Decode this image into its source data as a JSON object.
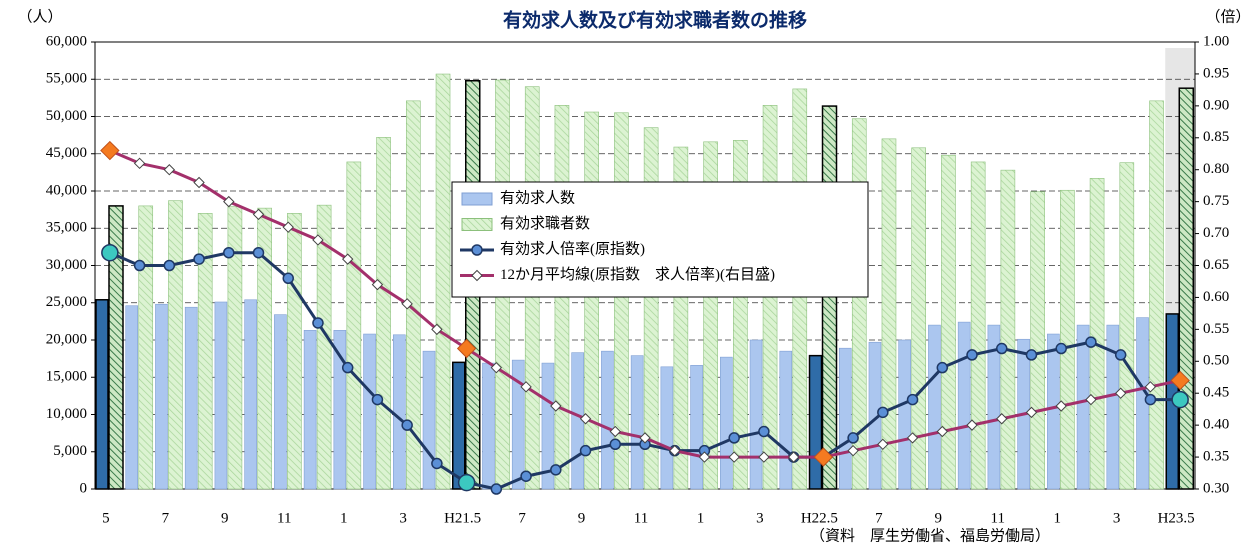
{
  "chart_data": {
    "type": "bar",
    "title": "有効求人数及び有効求職者数の推移",
    "y_unit": "（人）",
    "y2_unit": "（倍）",
    "source": "（資料　厚生労働省、福島労働局）",
    "categories": [
      "5",
      null,
      "7",
      null,
      "9",
      null,
      "11",
      null,
      "1",
      null,
      "3",
      null,
      "H21.5",
      null,
      "7",
      null,
      "9",
      null,
      "11",
      null,
      "1",
      null,
      "3",
      null,
      "H22.5",
      null,
      "7",
      null,
      "9",
      null,
      "11",
      null,
      "1",
      null,
      "3",
      null,
      "H23.5"
    ],
    "ylim": [
      0,
      60000
    ],
    "yticks": [
      0,
      {
        "value": 5000,
        "label": "5,000"
      },
      {
        "value": 10000,
        "label": "10,000"
      },
      {
        "value": 15000,
        "label": "15,000"
      },
      {
        "value": 20000,
        "label": "20,000"
      },
      {
        "value": 25000,
        "label": "25,000"
      },
      {
        "value": 30000,
        "label": "30,000"
      },
      {
        "value": 35000,
        "label": "35,000"
      },
      {
        "value": 40000,
        "label": "40,000"
      },
      {
        "value": 45000,
        "label": "45,000"
      },
      {
        "value": 50000,
        "label": "50,000"
      },
      {
        "value": 55000,
        "label": "55,000"
      },
      {
        "value": 60000,
        "label": "60,000"
      }
    ],
    "y2lim": [
      0.3,
      1.0
    ],
    "y2ticks": [
      {
        "value": 0.3,
        "label": "0.30"
      },
      {
        "value": 0.35,
        "label": "0.35"
      },
      {
        "value": 0.4,
        "label": "0.40"
      },
      {
        "value": 0.45,
        "label": "0.45"
      },
      {
        "value": 0.5,
        "label": "0.50"
      },
      {
        "value": 0.55,
        "label": "0.55"
      },
      {
        "value": 0.6,
        "label": "0.60"
      },
      {
        "value": 0.65,
        "label": "0.65"
      },
      {
        "value": 0.7,
        "label": "0.70"
      },
      {
        "value": 0.75,
        "label": "0.75"
      },
      {
        "value": 0.8,
        "label": "0.80"
      },
      {
        "value": 0.85,
        "label": "0.85"
      },
      {
        "value": 0.9,
        "label": "0.90"
      },
      {
        "value": 0.95,
        "label": "0.95"
      },
      {
        "value": 1.0,
        "label": "1.00"
      }
    ],
    "grid": true,
    "highlight": [
      0,
      12,
      24,
      36
    ],
    "series": [
      {
        "name": "有効求人数",
        "type": "bar",
        "color": "#abc6ef",
        "highlight_color": "#2f6ca8",
        "values": [
          25400,
          24600,
          24800,
          24400,
          25100,
          25400,
          23400,
          21300,
          21300,
          20800,
          20700,
          18500,
          17000,
          16900,
          17300,
          16900,
          18300,
          18500,
          17900,
          16400,
          16600,
          17700,
          20000,
          18500,
          17900,
          18900,
          19700,
          20000,
          22000,
          22400,
          22000,
          20100,
          20800,
          22000,
          22000,
          23000,
          23500
        ]
      },
      {
        "name": "有効求職者数",
        "type": "bar",
        "color": "#dcf3d2",
        "highlight_color": "#3a7a4a",
        "values": [
          38000,
          38000,
          38700,
          37000,
          37900,
          37700,
          37000,
          38100,
          43900,
          47200,
          52100,
          55700,
          54800,
          54900,
          54000,
          51500,
          50600,
          50500,
          48500,
          45900,
          46600,
          46800,
          51500,
          53700,
          51400,
          49700,
          47000,
          45800,
          44800,
          43900,
          42800,
          39900,
          40100,
          41700,
          43800,
          52100,
          53800
        ]
      },
      {
        "name": "有効求人倍率(原指数)",
        "type": "line",
        "axis": "y2",
        "color": "#1f3864",
        "marker": "circle",
        "marker_color": "#5b8fd6",
        "highlight_color": "#3cc8c0",
        "values": [
          0.67,
          0.65,
          0.65,
          0.66,
          0.67,
          0.67,
          0.63,
          0.56,
          0.49,
          0.44,
          0.4,
          0.34,
          0.31,
          0.3,
          0.32,
          0.33,
          0.36,
          0.37,
          0.37,
          0.36,
          0.36,
          0.38,
          0.39,
          0.35,
          0.35,
          0.38,
          0.42,
          0.44,
          0.49,
          0.51,
          0.52,
          0.51,
          0.52,
          0.53,
          0.51,
          0.44,
          0.44
        ]
      },
      {
        "name": "12か月平均線(原指数　求人倍率)(右目盛)",
        "type": "line",
        "axis": "y2",
        "color": "#a3306b",
        "marker": "diamond",
        "marker_color": "#ffffff",
        "highlight_color": "#f47a20",
        "values": [
          0.83,
          0.81,
          0.8,
          0.78,
          0.75,
          0.73,
          0.71,
          0.69,
          0.66,
          0.62,
          0.59,
          0.55,
          0.52,
          0.49,
          0.46,
          0.43,
          0.41,
          0.39,
          0.38,
          0.36,
          0.35,
          0.35,
          0.35,
          0.35,
          0.35,
          0.36,
          0.37,
          0.38,
          0.39,
          0.4,
          0.41,
          0.42,
          0.43,
          0.44,
          0.45,
          0.46,
          0.47
        ]
      }
    ]
  }
}
